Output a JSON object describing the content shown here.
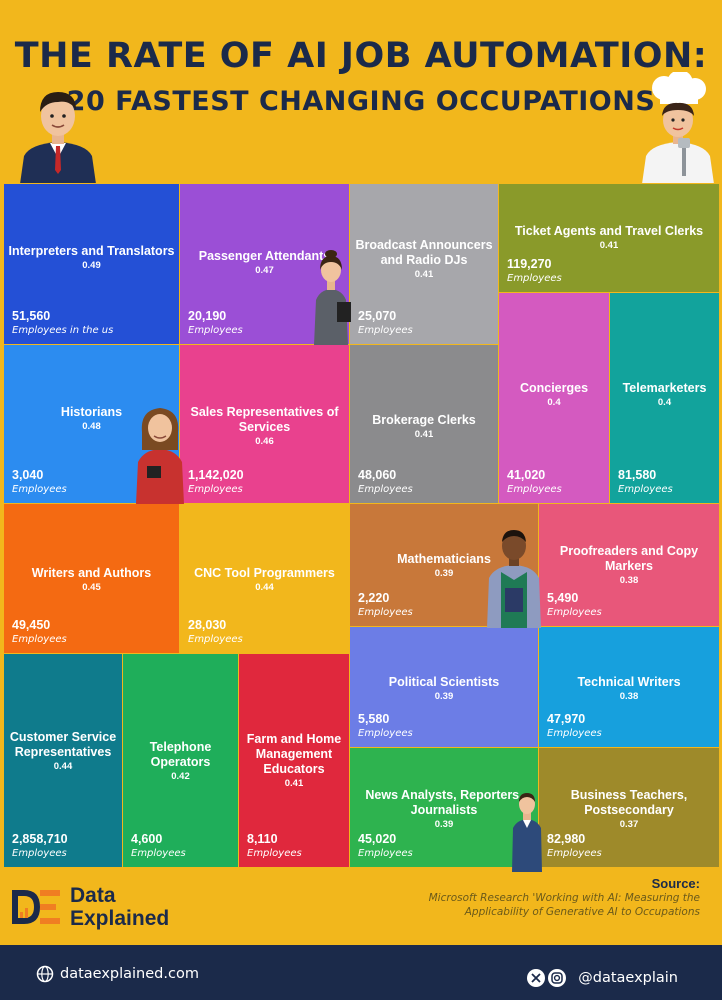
{
  "header": {
    "title_line1": "THE RATE OF AI JOB AUTOMATION:",
    "title_line2": "20 FASTEST CHANGING OCCUPATIONS"
  },
  "colors": {
    "background": "#f2b71c",
    "navy": "#1b2a4a",
    "logo_orange": "#f07e22"
  },
  "chart_data": {
    "type": "treemap",
    "value_key": "AI applicability score",
    "tiles": [
      {
        "name": "Interpreters and Translators",
        "rate": "0.49",
        "employees": "51,560",
        "unit": "Employees in the us",
        "color": "#2450d6"
      },
      {
        "name": "Passenger Attendants",
        "rate": "0.47",
        "employees": "20,190",
        "unit": "Employees",
        "color": "#9b4fd6"
      },
      {
        "name": "Broadcast Announcers and Radio DJs",
        "rate": "0.41",
        "employees": "25,070",
        "unit": "Employees",
        "color": "#a7a7ab"
      },
      {
        "name": "Ticket Agents and Travel Clerks",
        "rate": "0.41",
        "employees": "119,270",
        "unit": "Employees",
        "color": "#8a9a2a"
      },
      {
        "name": "Historians",
        "rate": "0.48",
        "employees": "3,040",
        "unit": "Employees",
        "color": "#2c8cf0"
      },
      {
        "name": "Sales Representatives of Services",
        "rate": "0.46",
        "employees": "1,142,020",
        "unit": "Employees",
        "color": "#e9418e"
      },
      {
        "name": "Brokerage Clerks",
        "rate": "0.41",
        "employees": "48,060",
        "unit": "Employees",
        "color": "#8b8b8d"
      },
      {
        "name": "Concierges",
        "rate": "0.4",
        "employees": "41,020",
        "unit": "Employees",
        "color": "#d45ac0"
      },
      {
        "name": "Telemarketers",
        "rate": "0.4",
        "employees": "81,580",
        "unit": "Employees",
        "color": "#12a39c"
      },
      {
        "name": "Writers and Authors",
        "rate": "0.45",
        "employees": "49,450",
        "unit": "Employees",
        "color": "#f46a12"
      },
      {
        "name": "CNC Tool Programmers",
        "rate": "0.44",
        "employees": "28,030",
        "unit": "Employees",
        "color": "#f2b71c"
      },
      {
        "name": "Mathematicians",
        "rate": "0.39",
        "employees": "2,220",
        "unit": "Employees",
        "color": "#c8783a"
      },
      {
        "name": "Proofreaders and Copy Markers",
        "rate": "0.38",
        "employees": "5,490",
        "unit": "Employees",
        "color": "#e8577a"
      },
      {
        "name": "Customer Service Representatives",
        "rate": "0.44",
        "employees": "2,858,710",
        "unit": "Employees",
        "color": "#0f7b8c"
      },
      {
        "name": "Telephone Operators",
        "rate": "0.42",
        "employees": "4,600",
        "unit": "Employees",
        "color": "#1fae5a"
      },
      {
        "name": "Farm and Home Management Educators",
        "rate": "0.41",
        "employees": "8,110",
        "unit": "Employees",
        "color": "#e0283d"
      },
      {
        "name": "Political Scientists",
        "rate": "0.39",
        "employees": "5,580",
        "unit": "Employees",
        "color": "#6c7de6"
      },
      {
        "name": "Technical Writers",
        "rate": "0.38",
        "employees": "47,970",
        "unit": "Employees",
        "color": "#17a0dd"
      },
      {
        "name": "News Analysts, Reporters, Journalists",
        "rate": "0.39",
        "employees": "45,020",
        "unit": "Employees",
        "color": "#2eb34f"
      },
      {
        "name": "Business Teachers, Postsecondary",
        "rate": "0.37",
        "employees": "82,980",
        "unit": "Employees",
        "color": "#9e8a2a"
      }
    ]
  },
  "source": {
    "label": "Source:",
    "text": "Microsoft Research 'Working with AI: Measuring the Applicability of Generative AI to Occupations"
  },
  "brand": {
    "logo_line1": "Data",
    "logo_line2": "Explained"
  },
  "footer": {
    "website": "dataexplained.com",
    "handle": "@dataexplain"
  }
}
